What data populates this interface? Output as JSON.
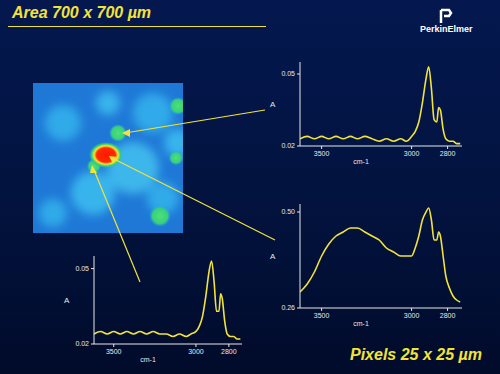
{
  "title": "Area 700 x 700 µm",
  "footer": "Pixels 25 x 25 µm",
  "logo": "PerkinElmer",
  "chart_data": [
    {
      "type": "line",
      "xlabel": "cm-1",
      "ylabel": "A",
      "xlim": [
        3620,
        2720
      ],
      "xticks": [
        3500,
        3000,
        2800
      ],
      "ylim": [
        0.02,
        0.055
      ],
      "yticks": [
        0.02,
        0.05
      ],
      "x": [
        3620,
        3580,
        3540,
        3500,
        3460,
        3420,
        3380,
        3340,
        3300,
        3260,
        3220,
        3180,
        3140,
        3100,
        3060,
        3030,
        3000,
        2980,
        2960,
        2940,
        2920,
        2905,
        2890,
        2875,
        2860,
        2850,
        2840,
        2825,
        2810,
        2790,
        2770,
        2750,
        2730
      ],
      "values": [
        0.023,
        0.024,
        0.023,
        0.024,
        0.023,
        0.024,
        0.023,
        0.024,
        0.023,
        0.024,
        0.023,
        0.022,
        0.023,
        0.022,
        0.023,
        0.022,
        0.024,
        0.026,
        0.03,
        0.038,
        0.048,
        0.053,
        0.044,
        0.031,
        0.03,
        0.036,
        0.035,
        0.027,
        0.023,
        0.022,
        0.022,
        0.021,
        0.021
      ],
      "color": "#f2e33a"
    },
    {
      "type": "line",
      "xlabel": "cm-1",
      "ylabel": "A",
      "xlim": [
        3620,
        2720
      ],
      "xticks": [
        3500,
        3000,
        2800
      ],
      "ylim": [
        0.26,
        0.52
      ],
      "yticks": [
        0.26,
        {
          "value": 0.5,
          "label": "0.50"
        }
      ],
      "x": [
        3620,
        3580,
        3540,
        3500,
        3460,
        3420,
        3380,
        3340,
        3300,
        3260,
        3220,
        3180,
        3140,
        3100,
        3060,
        3030,
        3000,
        2980,
        2960,
        2940,
        2920,
        2905,
        2890,
        2875,
        2860,
        2850,
        2840,
        2825,
        2810,
        2790,
        2770,
        2750,
        2730
      ],
      "values": [
        0.3,
        0.32,
        0.35,
        0.39,
        0.42,
        0.44,
        0.45,
        0.46,
        0.46,
        0.45,
        0.44,
        0.43,
        0.41,
        0.4,
        0.39,
        0.39,
        0.39,
        0.41,
        0.44,
        0.48,
        0.5,
        0.51,
        0.48,
        0.43,
        0.43,
        0.45,
        0.44,
        0.39,
        0.34,
        0.31,
        0.29,
        0.28,
        0.275
      ],
      "color": "#f2e33a"
    },
    {
      "type": "line",
      "xlabel": "cm-1",
      "ylabel": "A",
      "xlim": [
        3620,
        2720
      ],
      "xticks": [
        3500,
        3000,
        2800
      ],
      "ylim": [
        0.02,
        0.055
      ],
      "yticks": [
        0.02,
        0.05
      ],
      "x": [
        3620,
        3580,
        3540,
        3500,
        3460,
        3420,
        3380,
        3340,
        3300,
        3260,
        3220,
        3180,
        3140,
        3100,
        3060,
        3030,
        3000,
        2980,
        2960,
        2940,
        2920,
        2905,
        2890,
        2875,
        2860,
        2850,
        2840,
        2825,
        2810,
        2790,
        2770,
        2750,
        2730
      ],
      "values": [
        0.024,
        0.025,
        0.024,
        0.025,
        0.024,
        0.025,
        0.024,
        0.025,
        0.024,
        0.025,
        0.024,
        0.024,
        0.023,
        0.024,
        0.023,
        0.024,
        0.025,
        0.027,
        0.031,
        0.039,
        0.049,
        0.053,
        0.045,
        0.033,
        0.033,
        0.04,
        0.038,
        0.029,
        0.024,
        0.023,
        0.023,
        0.022,
        0.022
      ],
      "color": "#f2e33a"
    }
  ]
}
